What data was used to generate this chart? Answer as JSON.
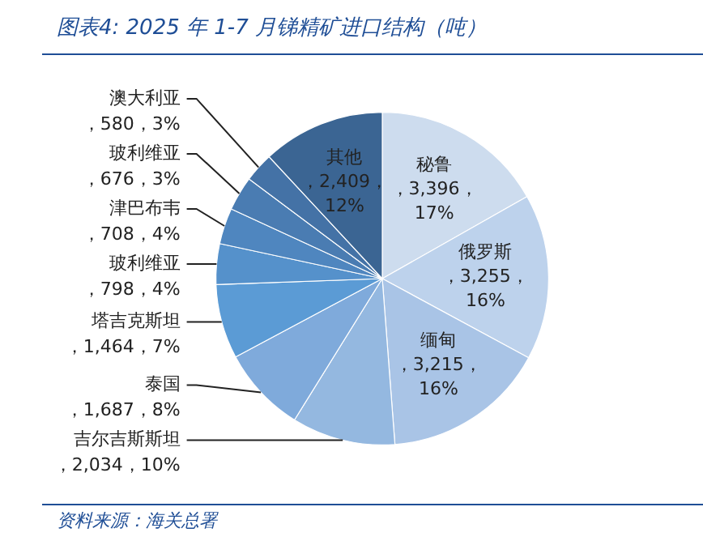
{
  "chart_data": {
    "type": "pie",
    "title": "图表4:  2025 年 1-7 月锑精矿进口结构（吨）",
    "categories": [
      "秘鲁",
      "俄罗斯",
      "缅甸",
      "吉尔吉斯斯坦",
      "泰国",
      "塔吉克斯坦",
      "玻利维亚",
      "津巴布韦",
      "玻利维亚",
      "澳大利亚",
      "其他"
    ],
    "values": [
      3396,
      3255,
      3215,
      2034,
      1687,
      1464,
      798,
      708,
      676,
      580,
      2409
    ],
    "value_labels": [
      "，3,396，17%",
      "，3,255，16%",
      "，3,215，16%",
      "，2,034，10%",
      "，1,687，8%",
      "，1,464，7%",
      "，798，4%",
      "，708，4%",
      "，676，3%",
      "，580，3%",
      "，2,409，12%"
    ],
    "colors": [
      "#cddcee",
      "#bdd2ec",
      "#a9c4e6",
      "#94b8e0",
      "#7faadb",
      "#5b9bd5",
      "#5591cb",
      "#4f86bf",
      "#4a7cb2",
      "#4472a6",
      "#3b6593"
    ],
    "legend": false,
    "annotations": [
      "资料来源：海关总署"
    ]
  }
}
